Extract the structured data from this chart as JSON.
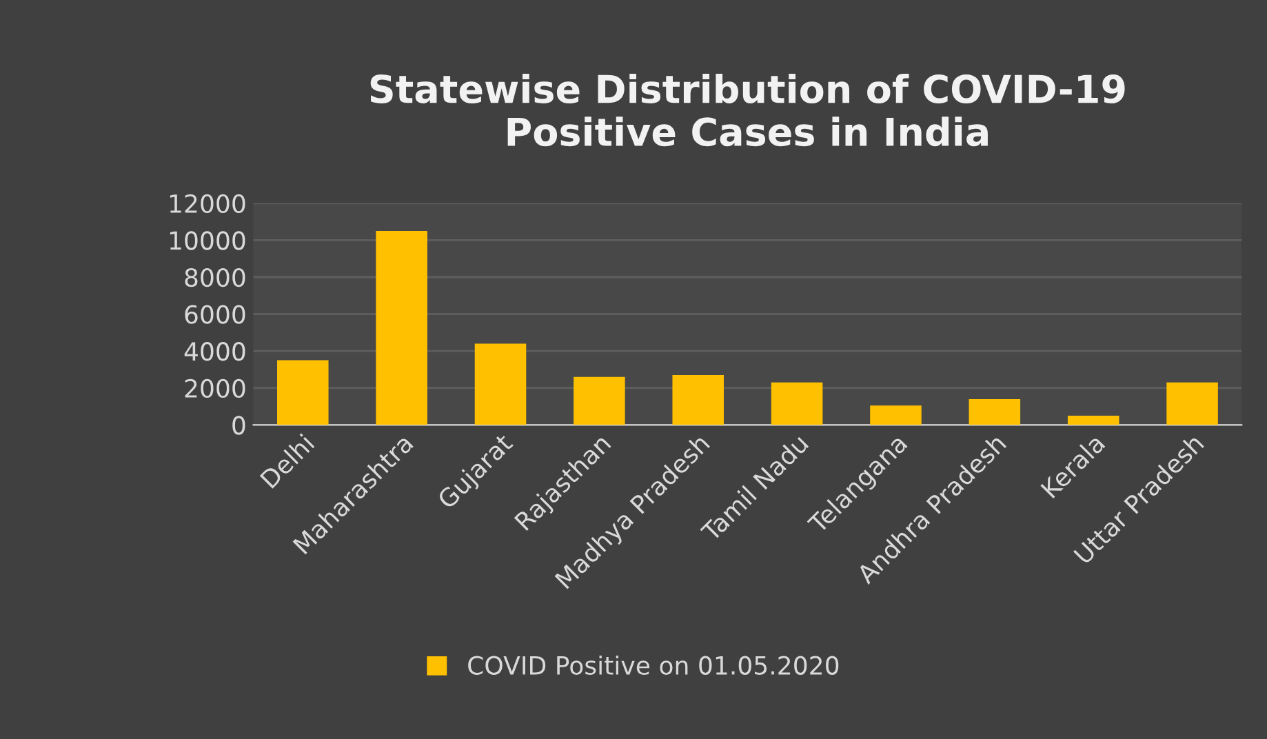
{
  "chart_data": {
    "type": "bar",
    "title": "Statewise Distribution of COVID-19\nPositive Cases in India",
    "categories": [
      "Delhi",
      "Maharashtra",
      "Gujarat",
      "Rajasthan",
      "Madhya Pradesh",
      "Tamil Nadu",
      "Telangana",
      "Andhra Pradesh",
      "Kerala",
      "Uttar Pradesh"
    ],
    "series": [
      {
        "name": "COVID Positive on 01.05.2020",
        "color": "#ffc000",
        "values": [
          3500,
          10500,
          4400,
          2600,
          2700,
          2300,
          1050,
          1400,
          500,
          2300
        ]
      }
    ],
    "ylim": [
      0,
      12000
    ],
    "yticks": [
      0,
      2000,
      4000,
      6000,
      8000,
      10000,
      12000
    ],
    "grid": "y",
    "legend": "bottom"
  }
}
